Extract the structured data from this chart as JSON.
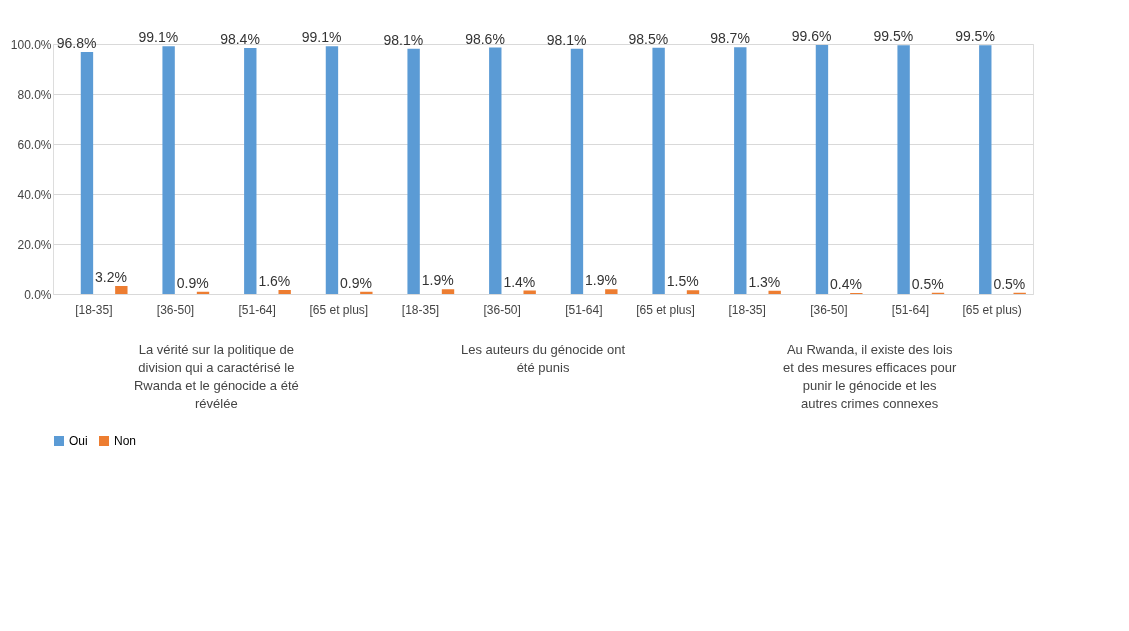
{
  "chart_data": {
    "type": "bar",
    "categories": [
      "[18-35]",
      "[36-50]",
      "[51-64]",
      "[65 et plus]",
      "[18-35]",
      "[36-50]",
      "[51-64]",
      "[65 et plus]",
      "[18-35]",
      "[36-50]",
      "[51-64]",
      "[65 et plus)"
    ],
    "series": [
      {
        "name": "Oui",
        "color": "#5b9bd5",
        "values": [
          96.8,
          99.1,
          98.4,
          99.1,
          98.1,
          98.6,
          98.1,
          98.5,
          98.7,
          99.6,
          99.5,
          99.5
        ],
        "value_labels": [
          "96.8%",
          "99.1%",
          "98.4%",
          "99.1%",
          "98.1%",
          "98.6%",
          "98.1%",
          "98.5%",
          "98.7%",
          "99.6%",
          "99.5%",
          "99.5%"
        ]
      },
      {
        "name": "Non",
        "color": "#ed7d31",
        "values": [
          3.2,
          0.9,
          1.6,
          0.9,
          1.9,
          1.4,
          1.9,
          1.5,
          1.3,
          0.4,
          0.5,
          0.5
        ],
        "value_labels": [
          "3.2%",
          "0.9%",
          "1.6%",
          "0.9%",
          "1.9%",
          "1.4%",
          "1.9%",
          "1.5%",
          "1.3%",
          "0.4%",
          "0.5%",
          "0.5%"
        ]
      }
    ],
    "ylim": [
      0,
      100
    ],
    "yticks": [
      {
        "value": 0,
        "label": "0.0%"
      },
      {
        "value": 20,
        "label": "20.0%"
      },
      {
        "value": 40,
        "label": "40.0%"
      },
      {
        "value": 60,
        "label": "60.0%"
      },
      {
        "value": 80,
        "label": "80.0%"
      },
      {
        "value": 100,
        "label": "100.0%"
      }
    ],
    "annotations": [
      "La vérité sur la politique de division qui a caractérisé le Rwanda et le génocide a été révélée",
      "Les auteurs du génocide ont été punis",
      "Au Rwanda, il existe des lois et des mesures efficaces pour punir le génocide et les autres crimes connexes"
    ],
    "grid": "y",
    "legend": "bottom"
  }
}
